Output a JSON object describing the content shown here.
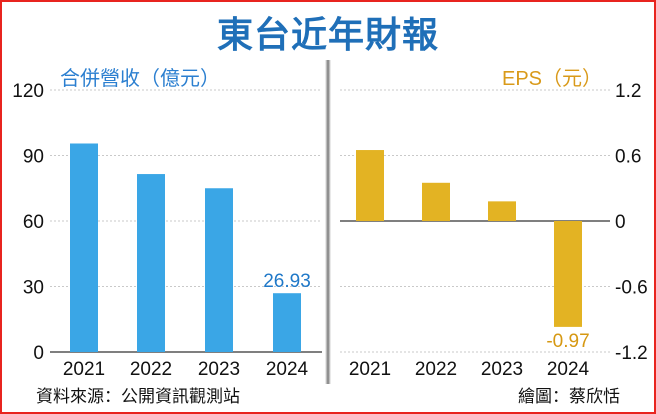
{
  "title": "東台近年財報",
  "footer": {
    "source": "資料來源：公開資訊觀測站",
    "credit": "繪圖：蔡欣恬"
  },
  "colors": {
    "border": "#e8241f",
    "title": "#1f6fb8",
    "revenue_bar": "#3aa6e6",
    "revenue_label": "#2b7fd0",
    "eps_bar": "#e3b323",
    "eps_label": "#d99a1a",
    "grid": "#c9c9c9"
  },
  "chart_data": [
    {
      "type": "bar",
      "title": "合併營收（億元）",
      "categories": [
        "2021",
        "2022",
        "2023",
        "2024"
      ],
      "values": [
        95.5,
        81.5,
        75,
        26.93
      ],
      "ylim": [
        0,
        120
      ],
      "yticks": [
        "0",
        "30",
        "60",
        "90",
        "120"
      ],
      "tick_values": [
        0,
        30,
        60,
        90,
        120
      ],
      "data_labels": [
        null,
        null,
        null,
        "26.93"
      ],
      "axis_side": "left"
    },
    {
      "type": "bar",
      "title": "EPS（元）",
      "categories": [
        "2021",
        "2022",
        "2023",
        "2024"
      ],
      "values": [
        0.65,
        0.35,
        0.18,
        -0.97
      ],
      "ylim": [
        -1.2,
        1.2
      ],
      "yticks": [
        "-1.2",
        "-0.6",
        "0",
        "0.6",
        "1.2"
      ],
      "tick_values": [
        -1.2,
        -0.6,
        0,
        0.6,
        1.2
      ],
      "data_labels": [
        null,
        null,
        null,
        "-0.97"
      ],
      "axis_side": "right"
    }
  ]
}
